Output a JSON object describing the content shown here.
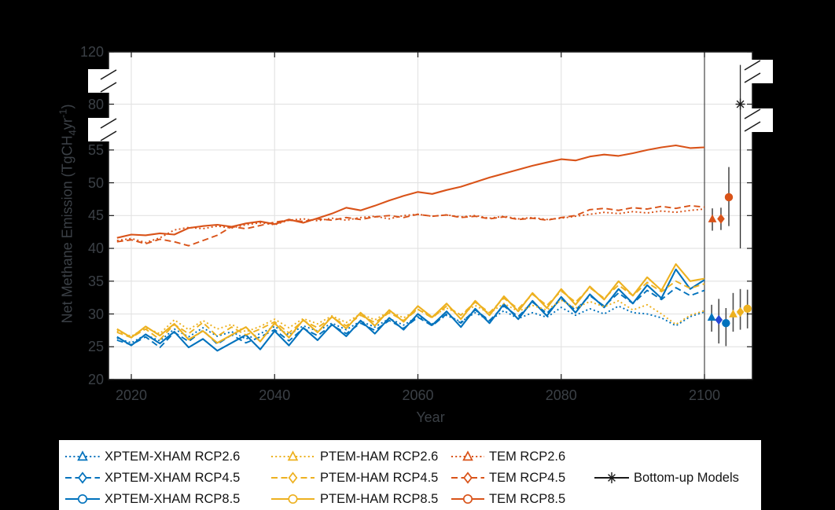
{
  "figure": {
    "background": "#000000",
    "plot_background": "#ffffff"
  },
  "axis_labels": {
    "xlabel": "Year",
    "ylabel_pre": "Net Methane Emission (TgCH",
    "ylabel_sub": "4",
    "ylabel_mid": "yr",
    "ylabel_sup": "-1",
    "ylabel_post": ")"
  },
  "chart_data": {
    "type": "line",
    "title": "",
    "xlabel": "Year",
    "ylabel": "Net Methane Emission (TgCH4 yr-1)",
    "x_range_years": [
      2016.8,
      2106.7
    ],
    "y_axis_broken": true,
    "y_segments": [
      [
        20,
        57.5
      ],
      [
        57.5,
        120
      ]
    ],
    "x_ticks": [
      2020,
      2040,
      2060,
      2080,
      2100
    ],
    "y_ticks": [
      20,
      25,
      30,
      35,
      40,
      45,
      50,
      55,
      80,
      120
    ],
    "x_gridlines": [
      2020,
      2040,
      2060,
      2080
    ],
    "y_gridlines": [
      25,
      30,
      35,
      40,
      45,
      50,
      55,
      80
    ],
    "separator_x": 2100,
    "grid_color": "#e2e2e2",
    "separator_color": "#454545",
    "axis_color": "#1a1a1a",
    "tick_label_color": "#3b4046",
    "years": [
      2018,
      2020,
      2022,
      2024,
      2026,
      2028,
      2030,
      2032,
      2034,
      2036,
      2038,
      2040,
      2042,
      2044,
      2046,
      2048,
      2050,
      2052,
      2054,
      2056,
      2058,
      2060,
      2062,
      2064,
      2066,
      2068,
      2070,
      2072,
      2074,
      2076,
      2078,
      2080,
      2082,
      2084,
      2086,
      2088,
      2090,
      2092,
      2094,
      2096,
      2098,
      2100
    ],
    "series": [
      {
        "label": "XPTEM-XHAM RCP2.6",
        "color": "#0072BD",
        "dash": "dotted",
        "marker": "triangle",
        "values": [
          26.3,
          25.6,
          26.8,
          25.9,
          27.7,
          26.5,
          27.9,
          26.6,
          27.3,
          26.2,
          27.0,
          28.1,
          26.8,
          28.2,
          27.4,
          28.6,
          27.6,
          28.9,
          28.0,
          29.3,
          28.3,
          29.6,
          28.5,
          29.8,
          28.8,
          30.2,
          29.0,
          30.5,
          29.3,
          30.2,
          29.5,
          31.0,
          29.8,
          30.8,
          30.0,
          31.2,
          30.2,
          30.0,
          29.4,
          28.2,
          29.6,
          30.3
        ]
      },
      {
        "label": "XPTEM-XHAM RCP4.5",
        "color": "#0072BD",
        "dash": "dashed",
        "marker": "diamond",
        "values": [
          26.0,
          25.3,
          26.5,
          24.9,
          27.2,
          25.8,
          27.5,
          25.4,
          26.8,
          25.6,
          26.5,
          27.6,
          25.9,
          27.8,
          26.7,
          28.3,
          27.0,
          28.6,
          27.5,
          29.0,
          27.8,
          29.5,
          28.2,
          30.0,
          28.6,
          30.6,
          29.0,
          31.2,
          29.6,
          31.8,
          30.1,
          32.3,
          30.6,
          32.8,
          31.2,
          33.2,
          31.6,
          33.6,
          32.2,
          34.0,
          32.8,
          33.6
        ]
      },
      {
        "label": "XPTEM-XHAM RCP8.5",
        "color": "#0072BD",
        "dash": "solid",
        "marker": "circle",
        "values": [
          26.5,
          25.2,
          26.9,
          25.5,
          27.3,
          24.9,
          26.2,
          24.4,
          25.6,
          26.8,
          24.6,
          27.4,
          25.2,
          27.9,
          26.0,
          28.4,
          26.6,
          29.0,
          27.0,
          29.4,
          27.6,
          30.0,
          28.3,
          30.4,
          28.0,
          30.8,
          28.6,
          31.5,
          29.2,
          32.0,
          29.7,
          32.6,
          30.2,
          33.0,
          31.0,
          33.8,
          31.6,
          34.4,
          32.4,
          36.8,
          33.8,
          35.2
        ]
      },
      {
        "label": "PTEM-HAM RCP2.6",
        "color": "#EDB120",
        "dash": "dotted",
        "marker": "triangle",
        "values": [
          27.4,
          26.6,
          27.9,
          27.0,
          29.1,
          27.6,
          29.0,
          27.7,
          28.4,
          27.3,
          28.1,
          29.2,
          27.9,
          29.3,
          28.5,
          29.7,
          28.7,
          30.0,
          29.1,
          30.4,
          29.4,
          30.7,
          29.6,
          30.9,
          29.9,
          31.3,
          30.1,
          31.6,
          30.4,
          31.3,
          30.6,
          32.1,
          30.9,
          31.9,
          31.1,
          32.0,
          30.6,
          31.4,
          30.0,
          28.4,
          29.8,
          30.5
        ]
      },
      {
        "label": "PTEM-HAM RCP4.5",
        "color": "#EDB120",
        "dash": "dashed",
        "marker": "diamond",
        "values": [
          27.2,
          26.4,
          27.7,
          26.1,
          28.4,
          27.0,
          28.7,
          26.6,
          28.0,
          26.8,
          27.7,
          28.8,
          27.1,
          29.0,
          27.9,
          29.5,
          28.2,
          29.8,
          28.7,
          30.2,
          29.0,
          30.7,
          29.4,
          31.2,
          29.8,
          31.8,
          30.2,
          32.4,
          30.8,
          33.0,
          31.3,
          33.5,
          31.8,
          34.0,
          32.4,
          34.4,
          32.8,
          34.8,
          33.4,
          35.0,
          33.9,
          34.6
        ]
      },
      {
        "label": "PTEM-HAM RCP8.5",
        "color": "#EDB120",
        "dash": "solid",
        "marker": "circle",
        "values": [
          27.7,
          26.4,
          28.1,
          26.7,
          28.5,
          26.1,
          27.4,
          25.6,
          26.8,
          28.0,
          25.8,
          28.6,
          26.4,
          29.1,
          27.2,
          29.6,
          27.8,
          30.2,
          28.2,
          30.6,
          28.8,
          31.2,
          29.5,
          31.6,
          29.2,
          32.0,
          29.8,
          32.7,
          30.4,
          33.2,
          30.9,
          33.8,
          31.4,
          34.2,
          32.2,
          35.0,
          32.8,
          35.6,
          33.6,
          37.6,
          35.0,
          35.4
        ]
      },
      {
        "label": "TEM RCP2.6",
        "color": "#D95319",
        "dash": "dotted",
        "marker": "triangle",
        "values": [
          41.2,
          41.5,
          40.9,
          41.6,
          42.8,
          43.2,
          43.0,
          43.4,
          43.1,
          43.6,
          43.9,
          43.6,
          44.3,
          44.5,
          44.2,
          44.6,
          44.3,
          44.7,
          44.9,
          44.5,
          45.0,
          45.2,
          44.9,
          45.1,
          44.8,
          45.0,
          44.6,
          44.9,
          44.5,
          44.7,
          44.4,
          44.6,
          44.9,
          45.2,
          45.5,
          45.3,
          45.6,
          45.4,
          45.7,
          45.5,
          45.8,
          46.0
        ]
      },
      {
        "label": "TEM RCP4.5",
        "color": "#D95319",
        "dash": "dashed",
        "marker": "diamond",
        "values": [
          41.0,
          41.3,
          40.7,
          41.4,
          41.0,
          40.4,
          41.2,
          42.0,
          43.3,
          43.0,
          43.5,
          44.0,
          44.3,
          44.1,
          44.5,
          44.3,
          44.7,
          44.4,
          44.8,
          45.0,
          44.7,
          45.2,
          44.9,
          45.1,
          44.7,
          44.9,
          44.5,
          44.8,
          44.4,
          44.6,
          44.3,
          44.7,
          45.0,
          45.9,
          46.1,
          45.8,
          46.2,
          46.0,
          46.4,
          46.1,
          46.5,
          46.3
        ]
      },
      {
        "label": "TEM RCP8.5",
        "color": "#D95319",
        "dash": "solid",
        "marker": "circle",
        "values": [
          41.6,
          42.1,
          42.0,
          42.3,
          42.1,
          43.1,
          43.4,
          43.6,
          43.3,
          43.8,
          44.1,
          43.7,
          44.4,
          43.9,
          44.6,
          45.3,
          46.2,
          45.8,
          46.5,
          47.3,
          48.0,
          48.6,
          48.3,
          48.9,
          49.4,
          50.1,
          50.8,
          51.4,
          52.0,
          52.6,
          53.1,
          53.6,
          53.4,
          54.0,
          54.3,
          54.1,
          54.5,
          55.0,
          55.4,
          55.7,
          55.3,
          55.4
        ]
      }
    ],
    "errorbars": [
      {
        "label": "XPTEM-XHAM RCP2.6",
        "x": 2101.0,
        "y": 29.5,
        "lo": 27.3,
        "hi": 31.4,
        "color": "#0072BD",
        "marker": "triangle"
      },
      {
        "label": "XPTEM-XHAM RCP4.5",
        "x": 2102.0,
        "y": 29.1,
        "lo": 25.5,
        "hi": 32.3,
        "color": "#2646D4",
        "marker": "diamond"
      },
      {
        "label": "XPTEM-XHAM RCP8.5",
        "x": 2103.0,
        "y": 28.6,
        "lo": 25.1,
        "hi": 30.9,
        "color": "#0072BD",
        "marker": "circle"
      },
      {
        "label": "PTEM-HAM RCP2.6",
        "x": 2104.0,
        "y": 30.0,
        "lo": 27.3,
        "hi": 33.2,
        "color": "#EDB120",
        "marker": "triangle"
      },
      {
        "label": "PTEM-HAM RCP4.5",
        "x": 2105.0,
        "y": 30.3,
        "lo": 27.6,
        "hi": 33.8,
        "color": "#EDB120",
        "marker": "diamond"
      },
      {
        "label": "PTEM-HAM RCP8.5",
        "x": 2106.0,
        "y": 30.8,
        "lo": 27.8,
        "hi": 33.7,
        "color": "#EDB120",
        "marker": "circle"
      },
      {
        "label": "TEM RCP2.6",
        "x": 2101.1,
        "y": 44.5,
        "lo": 42.7,
        "hi": 46.1,
        "color": "#D95319",
        "marker": "triangle"
      },
      {
        "label": "TEM RCP4.5",
        "x": 2102.3,
        "y": 44.5,
        "lo": 42.8,
        "hi": 46.2,
        "color": "#D95319",
        "marker": "diamond"
      },
      {
        "label": "TEM RCP8.5",
        "x": 2103.4,
        "y": 47.8,
        "lo": 43.4,
        "hi": 52.4,
        "color": "#D95319",
        "marker": "circle"
      },
      {
        "label": "Bottom-up Models",
        "x": 2105.0,
        "y": 80,
        "lo": 40,
        "hi": 110,
        "color": "#1a1a1a",
        "marker": "asterisk"
      }
    ],
    "legend": {
      "position": "below",
      "background": "#ffffff",
      "items": [
        {
          "label": "XPTEM-XHAM RCP2.6",
          "color": "#0072BD",
          "dash": "dotted",
          "marker": "triangle",
          "col": 0,
          "row": 0
        },
        {
          "label": "XPTEM-XHAM RCP4.5",
          "color": "#0072BD",
          "dash": "dashed",
          "marker": "diamond",
          "col": 0,
          "row": 1
        },
        {
          "label": "XPTEM-XHAM RCP8.5",
          "color": "#0072BD",
          "dash": "solid",
          "marker": "circle",
          "col": 0,
          "row": 2
        },
        {
          "label": "PTEM-HAM RCP2.6",
          "color": "#EDB120",
          "dash": "dotted",
          "marker": "triangle",
          "col": 1,
          "row": 0
        },
        {
          "label": "PTEM-HAM RCP4.5",
          "color": "#EDB120",
          "dash": "dashed",
          "marker": "diamond",
          "col": 1,
          "row": 1
        },
        {
          "label": "PTEM-HAM RCP8.5",
          "color": "#EDB120",
          "dash": "solid",
          "marker": "circle",
          "col": 1,
          "row": 2
        },
        {
          "label": "TEM RCP2.6",
          "color": "#D95319",
          "dash": "dotted",
          "marker": "triangle",
          "col": 2,
          "row": 0
        },
        {
          "label": "TEM RCP4.5",
          "color": "#D95319",
          "dash": "dashed",
          "marker": "diamond",
          "col": 2,
          "row": 1
        },
        {
          "label": "TEM RCP8.5",
          "color": "#D95319",
          "dash": "solid",
          "marker": "circle",
          "col": 2,
          "row": 2
        },
        {
          "label": "Bottom-up Models",
          "color": "#1a1a1a",
          "dash": "solid",
          "marker": "asterisk",
          "col": 3,
          "row": 1
        }
      ]
    }
  }
}
